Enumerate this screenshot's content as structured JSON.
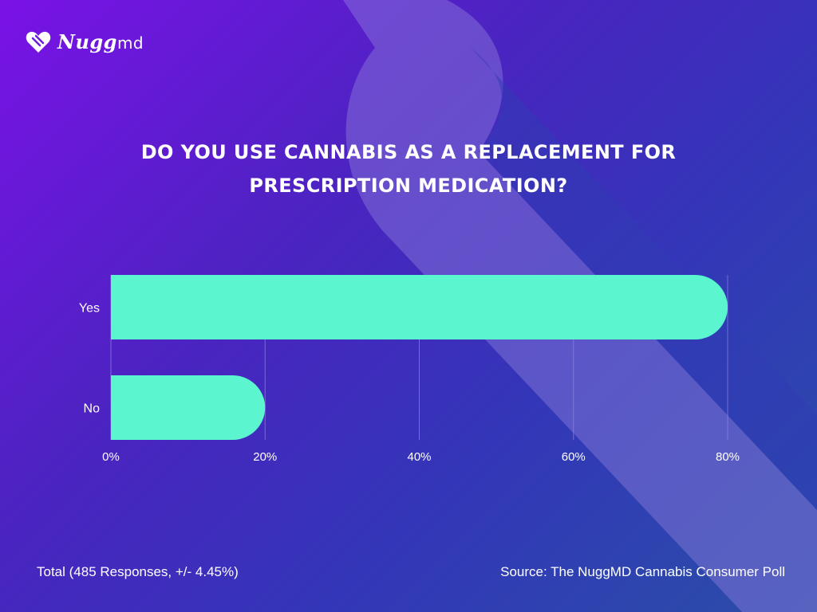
{
  "brand": {
    "name": "Nugg",
    "suffix": "md",
    "heart_color": "#ffffff"
  },
  "title_line1": "DO YOU USE CANNABIS AS A REPLACEMENT FOR",
  "title_line2": "PRESCRIPTION MEDICATION?",
  "footer": {
    "total": "Total (485 Responses, +/- 4.45%)",
    "source": "Source: The NuggMD Cannabis Consumer Poll"
  },
  "colors": {
    "bar": "#5bf5d0",
    "grid": "#8f86e6",
    "accent_shape": "#8d7fdc"
  },
  "chart_data": {
    "type": "bar",
    "orientation": "horizontal",
    "categories": [
      "Yes",
      "No"
    ],
    "values": [
      80,
      20
    ],
    "xlim": [
      0,
      80
    ],
    "xticks": [
      "0%",
      "20%",
      "40%",
      "60%",
      "80%"
    ],
    "xtick_values": [
      0,
      20,
      40,
      60,
      80
    ],
    "grid": true
  }
}
